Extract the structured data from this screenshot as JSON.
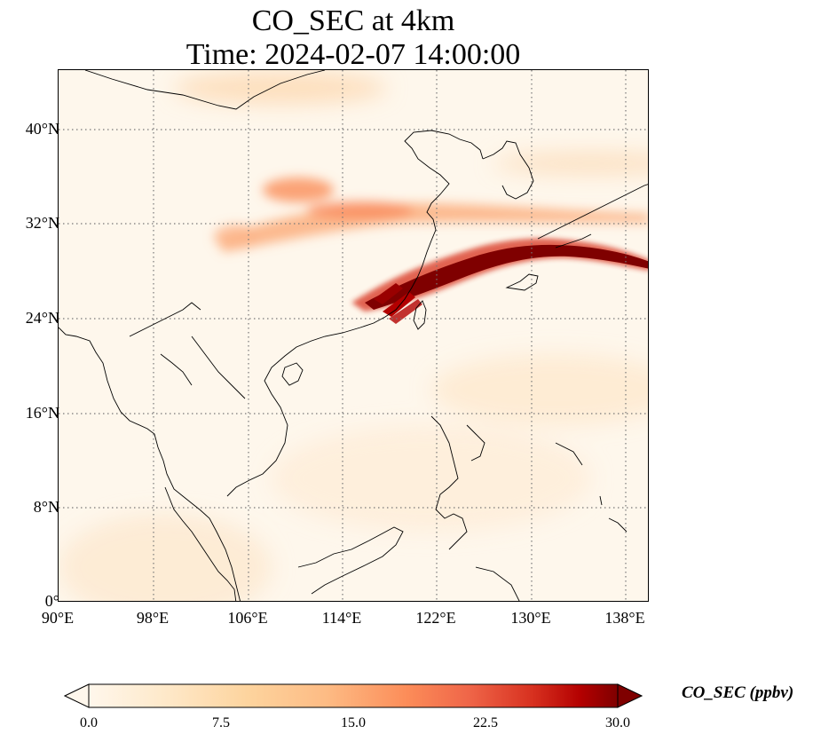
{
  "title": {
    "line1": "CO_SEC at 4km",
    "line2": "Time: 2024-02-07 14:00:00"
  },
  "map": {
    "projection": "PlateCarree",
    "lon_range": [
      90,
      139
    ],
    "lat_range": [
      0,
      45
    ],
    "gridlines": "dotted",
    "lat_ticks": [
      "40°N",
      "32°N",
      "24°N",
      "16°N",
      "8°N",
      "0°"
    ],
    "lon_ticks": [
      "90°E",
      "98°E",
      "106°E",
      "114°E",
      "122°E",
      "130°E",
      "138°E"
    ],
    "field": "CO_SEC",
    "plume_region": "East China Sea, from the Fujian coast east-north-east toward southern Japan",
    "colors": {
      "low": "#fff5eb",
      "mid": "#fdae6b",
      "high": "#7f0000"
    }
  },
  "colorbar": {
    "label": "CO_SEC (ppbv)",
    "ticks": [
      "0.0",
      "7.5",
      "15.0",
      "22.5",
      "30.0"
    ],
    "range": [
      0,
      30
    ],
    "extend": "both",
    "colormap": "OrRd"
  }
}
